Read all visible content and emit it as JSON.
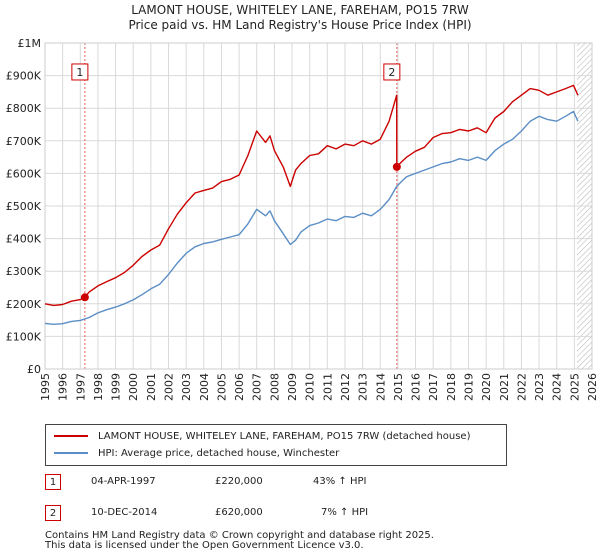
{
  "chart_data": {
    "type": "line",
    "title": "LAMONT HOUSE, WHITELEY LANE, FAREHAM, PO15 7RW",
    "subtitle": "Price paid vs. HM Land Registry's House Price Index (HPI)",
    "xlim": [
      1995,
      2026
    ],
    "ylim": [
      0,
      1000000
    ],
    "x_ticks": [
      1995,
      1996,
      1997,
      1998,
      1999,
      2000,
      2001,
      2002,
      2003,
      2004,
      2005,
      2006,
      2007,
      2008,
      2009,
      2010,
      2011,
      2012,
      2013,
      2014,
      2015,
      2016,
      2017,
      2018,
      2019,
      2020,
      2021,
      2022,
      2023,
      2024,
      2025,
      2026
    ],
    "y_ticks": [
      {
        "value": 0,
        "label": "£0"
      },
      {
        "value": 100000,
        "label": "£100K"
      },
      {
        "value": 200000,
        "label": "£200K"
      },
      {
        "value": 300000,
        "label": "£300K"
      },
      {
        "value": 400000,
        "label": "£400K"
      },
      {
        "value": 500000,
        "label": "£500K"
      },
      {
        "value": 600000,
        "label": "£600K"
      },
      {
        "value": 700000,
        "label": "£700K"
      },
      {
        "value": 800000,
        "label": "£800K"
      },
      {
        "value": 900000,
        "label": "£900K"
      },
      {
        "value": 1000000,
        "label": "£1M"
      }
    ],
    "grid": true,
    "series": [
      {
        "name": "LAMONT HOUSE, WHITELEY LANE, FAREHAM, PO15 7RW (detached house)",
        "color": "#cc0000",
        "x": [
          1995.0,
          1995.5,
          1996.0,
          1996.5,
          1997.0,
          1997.26,
          1997.5,
          1998.0,
          1998.5,
          1999.0,
          1999.5,
          2000.0,
          2000.5,
          2001.0,
          2001.5,
          2002.0,
          2002.5,
          2003.0,
          2003.5,
          2004.0,
          2004.5,
          2005.0,
          2005.5,
          2006.0,
          2006.5,
          2007.0,
          2007.5,
          2007.75,
          2008.0,
          2008.5,
          2008.9,
          2009.2,
          2009.5,
          2010.0,
          2010.5,
          2011.0,
          2011.5,
          2012.0,
          2012.5,
          2013.0,
          2013.5,
          2014.0,
          2014.5,
          2014.93,
          2014.94,
          2015.2,
          2015.5,
          2016.0,
          2016.5,
          2017.0,
          2017.5,
          2018.0,
          2018.5,
          2019.0,
          2019.5,
          2020.0,
          2020.5,
          2021.0,
          2021.5,
          2022.0,
          2022.5,
          2023.0,
          2023.5,
          2024.0,
          2024.5,
          2024.95,
          2025.2
        ],
        "y": [
          200000,
          195000,
          198000,
          208000,
          213000,
          220000,
          236000,
          255000,
          268000,
          280000,
          296000,
          318000,
          345000,
          365000,
          380000,
          430000,
          475000,
          510000,
          540000,
          548000,
          555000,
          575000,
          582000,
          595000,
          655000,
          730000,
          695000,
          715000,
          670000,
          620000,
          560000,
          610000,
          630000,
          655000,
          660000,
          685000,
          675000,
          690000,
          685000,
          700000,
          690000,
          705000,
          760000,
          840000,
          620000,
          635000,
          650000,
          668000,
          680000,
          710000,
          722000,
          725000,
          735000,
          730000,
          740000,
          725000,
          770000,
          790000,
          820000,
          840000,
          860000,
          855000,
          840000,
          850000,
          860000,
          870000,
          840000
        ]
      },
      {
        "name": "HPI: Average price, detached house, Winchester",
        "color": "#5b8ec6",
        "x": [
          1995.0,
          1995.5,
          1996.0,
          1996.5,
          1997.0,
          1997.5,
          1998.0,
          1998.5,
          1999.0,
          1999.5,
          2000.0,
          2000.5,
          2001.0,
          2001.5,
          2002.0,
          2002.5,
          2003.0,
          2003.5,
          2004.0,
          2004.5,
          2005.0,
          2005.5,
          2006.0,
          2006.5,
          2007.0,
          2007.5,
          2007.75,
          2008.0,
          2008.5,
          2008.9,
          2009.2,
          2009.5,
          2010.0,
          2010.5,
          2011.0,
          2011.5,
          2012.0,
          2012.5,
          2013.0,
          2013.5,
          2014.0,
          2014.5,
          2014.93,
          2015.2,
          2015.5,
          2016.0,
          2016.5,
          2017.0,
          2017.5,
          2018.0,
          2018.5,
          2019.0,
          2019.5,
          2020.0,
          2020.5,
          2021.0,
          2021.5,
          2022.0,
          2022.5,
          2023.0,
          2023.5,
          2024.0,
          2024.5,
          2024.95,
          2025.2
        ],
        "y": [
          140000,
          137000,
          139000,
          146000,
          149000,
          158000,
          172000,
          182000,
          190000,
          200000,
          212000,
          228000,
          246000,
          260000,
          290000,
          325000,
          355000,
          375000,
          385000,
          390000,
          398000,
          405000,
          412000,
          445000,
          490000,
          470000,
          485000,
          455000,
          415000,
          382000,
          395000,
          420000,
          440000,
          448000,
          460000,
          455000,
          468000,
          465000,
          478000,
          470000,
          490000,
          520000,
          560000,
          575000,
          590000,
          600000,
          610000,
          620000,
          630000,
          635000,
          645000,
          640000,
          650000,
          640000,
          670000,
          690000,
          705000,
          730000,
          760000,
          775000,
          765000,
          760000,
          775000,
          790000,
          760000
        ]
      }
    ],
    "markers": [
      {
        "label": "1",
        "x": 1997.26,
        "y": 220000
      },
      {
        "label": "2",
        "x": 2014.94,
        "y": 620000
      }
    ]
  },
  "legend": {
    "property": "LAMONT HOUSE, WHITELEY LANE, FAREHAM, PO15 7RW (detached house)",
    "hpi": "HPI: Average price, detached house, Winchester"
  },
  "transactions": [
    {
      "num": "1",
      "date": "04-APR-1997",
      "price": "£220,000",
      "change": "43% ↑ HPI"
    },
    {
      "num": "2",
      "date": "10-DEC-2014",
      "price": "£620,000",
      "change": "7% ↑ HPI"
    }
  ],
  "footer": {
    "line1": "Contains HM Land Registry data © Crown copyright and database right 2025.",
    "line2": "This data is licensed under the Open Government Licence v3.0."
  }
}
